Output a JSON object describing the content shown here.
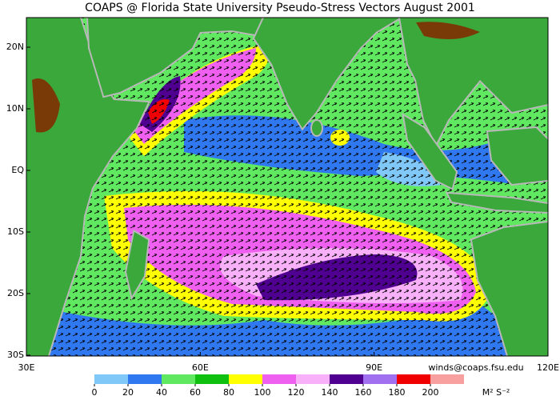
{
  "map": {
    "title": "COAPS @ Florida State University Pseudo-Stress Vectors August 2001",
    "credit": "winds@coaps.fsu.edu",
    "unit": "M² S⁻²",
    "lat_ticks": [
      {
        "value": 20,
        "label": "20N"
      },
      {
        "value": 10,
        "label": "10N"
      },
      {
        "value": 0,
        "label": "EQ"
      },
      {
        "value": -10,
        "label": "10S"
      },
      {
        "value": -20,
        "label": "20S"
      },
      {
        "value": -30,
        "label": "30S"
      }
    ],
    "lon_ticks": [
      {
        "value": 30,
        "label": "30E"
      },
      {
        "value": 60,
        "label": "60E"
      },
      {
        "value": 90,
        "label": "90E"
      },
      {
        "value": 120,
        "label": "120E"
      }
    ],
    "colorbar": {
      "ticks": [
        0,
        20,
        40,
        60,
        80,
        100,
        120,
        140,
        160,
        180,
        200
      ],
      "colors": [
        "#80c8f8",
        "#3078f0",
        "#60e860",
        "#10c010",
        "#ffff00",
        "#f060f0",
        "#f8b0f8",
        "#500090",
        "#a070f0",
        "#f00000",
        "#f8a0a0"
      ]
    }
  }
}
